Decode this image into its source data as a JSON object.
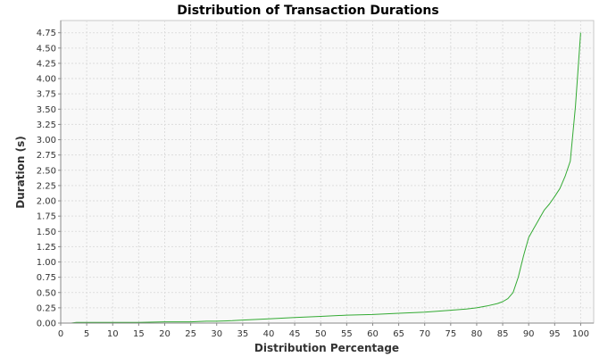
{
  "chart_data": {
    "type": "line",
    "title": "Distribution of Transaction Durations",
    "xlabel": "Distribution Percentage",
    "ylabel": "Duration (s)",
    "xlim": [
      0,
      102.5
    ],
    "ylim": [
      0,
      4.95
    ],
    "xticks": [
      0,
      5,
      10,
      15,
      20,
      25,
      30,
      35,
      40,
      45,
      50,
      55,
      60,
      65,
      70,
      75,
      80,
      85,
      90,
      95,
      100
    ],
    "xtick_labels": [
      "0",
      "5",
      "10",
      "15",
      "20",
      "25",
      "30",
      "35",
      "40",
      "45",
      "50",
      "55",
      "60",
      "65",
      "70",
      "75",
      "80",
      "85",
      "90",
      "95",
      "100"
    ],
    "yticks": [
      0,
      0.25,
      0.5,
      0.75,
      1.0,
      1.25,
      1.5,
      1.75,
      2.0,
      2.25,
      2.5,
      2.75,
      3.0,
      3.25,
      3.5,
      3.75,
      4.0,
      4.25,
      4.5,
      4.75
    ],
    "ytick_labels": [
      "0.00",
      "0.25",
      "0.50",
      "0.75",
      "1.00",
      "1.25",
      "1.50",
      "1.75",
      "2.00",
      "2.25",
      "2.50",
      "2.75",
      "3.00",
      "3.25",
      "3.50",
      "3.75",
      "4.00",
      "4.25",
      "4.50",
      "4.75"
    ],
    "grid": true,
    "legend": "none",
    "background_color": "#f8f8f8",
    "grid_color": "#dddddd",
    "series": [
      {
        "color": "#33aa33",
        "x": [
          0,
          2,
          3,
          5,
          10,
          15,
          20,
          25,
          28,
          30,
          33,
          35,
          40,
          45,
          50,
          55,
          60,
          65,
          70,
          75,
          78,
          80,
          82,
          84,
          85,
          86,
          87,
          88,
          89,
          90,
          91,
          92,
          93,
          94,
          95,
          96,
          97,
          98,
          99,
          100
        ],
        "y": [
          0.0,
          0.0,
          0.01,
          0.01,
          0.01,
          0.01,
          0.02,
          0.02,
          0.03,
          0.03,
          0.04,
          0.05,
          0.07,
          0.09,
          0.11,
          0.13,
          0.14,
          0.16,
          0.18,
          0.21,
          0.23,
          0.25,
          0.28,
          0.32,
          0.35,
          0.4,
          0.5,
          0.75,
          1.1,
          1.4,
          1.55,
          1.7,
          1.85,
          1.95,
          2.07,
          2.2,
          2.4,
          2.65,
          3.55,
          4.75
        ]
      }
    ]
  }
}
